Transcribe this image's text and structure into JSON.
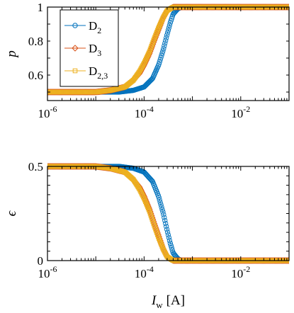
{
  "chart_data": [
    {
      "type": "scatter",
      "panel": "top",
      "ylabel": "p",
      "xlabel": "",
      "xscale": "log",
      "xlim": [
        1e-06,
        0.1
      ],
      "ylim": [
        0.45,
        1.0
      ],
      "yticks": [
        0.6,
        0.8,
        1
      ],
      "ytick_labels": [
        "0.6",
        "0.8",
        "1"
      ],
      "xticks": [
        1e-06,
        0.0001,
        0.01
      ],
      "xtick_labels": [
        {
          "base": "10",
          "exp": "-6"
        },
        {
          "base": "10",
          "exp": "-4"
        },
        {
          "base": "10",
          "exp": "-2"
        }
      ],
      "grid": false,
      "legend": {
        "position": "top-left",
        "entries": [
          {
            "series": "D2",
            "base": "D",
            "sub": "2",
            "marker": "circle"
          },
          {
            "series": "D3",
            "base": "D",
            "sub": "3",
            "marker": "diamond"
          },
          {
            "series": "D23",
            "base": "D",
            "sub": "2,3",
            "marker": "square"
          }
        ]
      },
      "series": [
        {
          "name": "D2",
          "color": "#0072BD",
          "marker": "circle",
          "x": [
            1e-06,
            1e-05,
            3e-05,
            6e-05,
            0.0001,
            0.00015,
            0.0002,
            0.00025,
            0.0003,
            0.00035,
            0.0004,
            0.0005,
            0.0006,
            0.001,
            0.01,
            0.1
          ],
          "y": [
            0.5,
            0.5,
            0.5,
            0.51,
            0.53,
            0.58,
            0.66,
            0.75,
            0.84,
            0.91,
            0.96,
            0.99,
            1.0,
            1.0,
            1.0,
            1.0
          ]
        },
        {
          "name": "D3",
          "color": "#D95319",
          "marker": "diamond",
          "x": [
            1e-06,
            1e-05,
            2e-05,
            4e-05,
            6e-05,
            8e-05,
            0.0001,
            0.00013,
            0.00016,
            0.0002,
            0.00025,
            0.0003,
            0.0004,
            0.0006,
            0.001,
            0.01,
            0.1
          ],
          "y": [
            0.5,
            0.5,
            0.51,
            0.53,
            0.57,
            0.61,
            0.66,
            0.73,
            0.8,
            0.87,
            0.94,
            0.98,
            1.0,
            1.0,
            1.0,
            1.0,
            1.0
          ]
        },
        {
          "name": "D23",
          "color": "#EDB120",
          "marker": "square",
          "x": [
            1e-06,
            1e-05,
            2e-05,
            4e-05,
            6e-05,
            8e-05,
            0.0001,
            0.00013,
            0.00016,
            0.0002,
            0.00025,
            0.0003,
            0.0004,
            0.0006,
            0.001,
            0.01,
            0.1
          ],
          "y": [
            0.5,
            0.5,
            0.51,
            0.53,
            0.57,
            0.62,
            0.67,
            0.74,
            0.81,
            0.88,
            0.94,
            0.98,
            1.0,
            1.0,
            1.0,
            1.0,
            1.0
          ]
        }
      ]
    },
    {
      "type": "scatter",
      "panel": "bottom",
      "ylabel": "ϵ",
      "xlabel": "[A]",
      "xlabel_symbol": {
        "base": "I",
        "sub": "w"
      },
      "xscale": "log",
      "xlim": [
        1e-06,
        0.1
      ],
      "ylim": [
        0,
        0.5
      ],
      "yticks": [
        0,
        0.5
      ],
      "ytick_labels": [
        "0",
        "0.5"
      ],
      "xticks": [
        1e-06,
        0.0001,
        0.01
      ],
      "xtick_labels": [
        {
          "base": "10",
          "exp": "-6"
        },
        {
          "base": "10",
          "exp": "-4"
        },
        {
          "base": "10",
          "exp": "-2"
        }
      ],
      "grid": false,
      "series": [
        {
          "name": "D2",
          "color": "#0072BD",
          "marker": "circle",
          "x": [
            1e-06,
            1e-05,
            3e-05,
            6e-05,
            0.0001,
            0.00015,
            0.0002,
            0.00025,
            0.0003,
            0.00035,
            0.0004,
            0.0005,
            0.0006,
            0.001,
            0.01,
            0.1
          ],
          "y": [
            0.5,
            0.5,
            0.5,
            0.49,
            0.47,
            0.42,
            0.34,
            0.25,
            0.16,
            0.09,
            0.04,
            0.01,
            0.0,
            0.0,
            0.0,
            0.0
          ]
        },
        {
          "name": "D3",
          "color": "#D95319",
          "marker": "diamond",
          "x": [
            1e-06,
            1e-05,
            2e-05,
            4e-05,
            6e-05,
            8e-05,
            0.0001,
            0.00013,
            0.00016,
            0.0002,
            0.00025,
            0.0003,
            0.0004,
            0.0006,
            0.001,
            0.01,
            0.1
          ],
          "y": [
            0.5,
            0.5,
            0.49,
            0.47,
            0.43,
            0.39,
            0.34,
            0.27,
            0.2,
            0.13,
            0.06,
            0.02,
            0.0,
            0.0,
            0.0,
            0.0,
            0.0
          ]
        },
        {
          "name": "D23",
          "color": "#EDB120",
          "marker": "square",
          "x": [
            1e-06,
            1e-05,
            2e-05,
            4e-05,
            6e-05,
            8e-05,
            0.0001,
            0.00013,
            0.00016,
            0.0002,
            0.00025,
            0.0003,
            0.0004,
            0.0006,
            0.001,
            0.01,
            0.1
          ],
          "y": [
            0.5,
            0.5,
            0.49,
            0.47,
            0.43,
            0.38,
            0.33,
            0.26,
            0.19,
            0.12,
            0.06,
            0.02,
            0.0,
            0.0,
            0.0,
            0.0,
            0.0
          ]
        }
      ]
    }
  ]
}
